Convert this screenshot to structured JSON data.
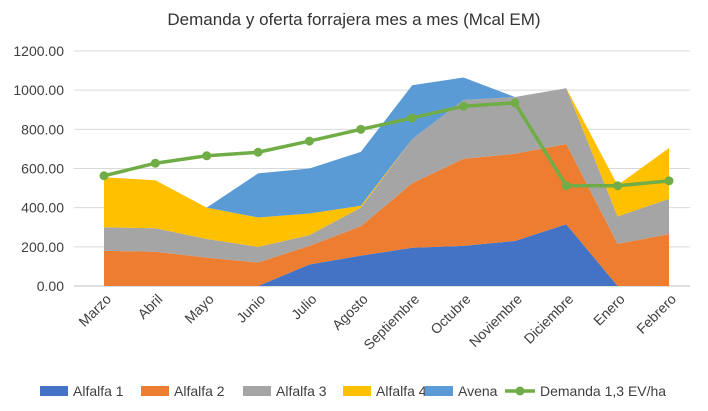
{
  "chart_data": {
    "type": "area",
    "title": "Demanda y oferta forrajera mes a mes (Mcal EM)",
    "xlabel": "",
    "ylabel": "",
    "ylim": [
      0,
      1200
    ],
    "yticks": [
      0,
      200,
      400,
      600,
      800,
      1000,
      1200
    ],
    "ytick_labels": [
      "0.00",
      "200.00",
      "400.00",
      "600.00",
      "800.00",
      "1000.00",
      "1200.00"
    ],
    "grid": true,
    "stacked": true,
    "legend_position": "bottom",
    "categories": [
      "Marzo",
      "Abril",
      "Mayo",
      "Junio",
      "Julio",
      "Agosto",
      "Septiembre",
      "Octubre",
      "Noviembre",
      "Diciembre",
      "Enero",
      "Febrero"
    ],
    "series": [
      {
        "name": "Alfalfa 1",
        "kind": "area",
        "color": "#4472C4",
        "values": [
          0,
          0,
          0,
          0,
          110,
          155,
          195,
          205,
          230,
          315,
          0,
          0
        ]
      },
      {
        "name": "Alfalfa 2",
        "kind": "area",
        "color": "#ED7D31",
        "values": [
          180,
          175,
          145,
          120,
          95,
          150,
          330,
          445,
          445,
          410,
          215,
          265
        ]
      },
      {
        "name": "Alfalfa 3",
        "kind": "area",
        "color": "#A5A5A5",
        "values": [
          120,
          120,
          95,
          80,
          55,
          95,
          225,
          300,
          290,
          285,
          140,
          180
        ]
      },
      {
        "name": "Alfalfa 4",
        "kind": "area",
        "color": "#FFC000",
        "values": [
          255,
          245,
          160,
          150,
          110,
          10,
          0,
          0,
          0,
          0,
          160,
          260
        ]
      },
      {
        "name": "Avena",
        "kind": "area",
        "color": "#5B9BD5",
        "values": [
          0,
          0,
          0,
          225,
          230,
          275,
          275,
          115,
          0,
          0,
          0,
          0
        ]
      },
      {
        "name": "Demanda 1,3 EV/ha",
        "kind": "line",
        "color": "#70AD47",
        "values": [
          563,
          627,
          665,
          683,
          740,
          800,
          858,
          918,
          935,
          512,
          512,
          537
        ]
      }
    ]
  }
}
